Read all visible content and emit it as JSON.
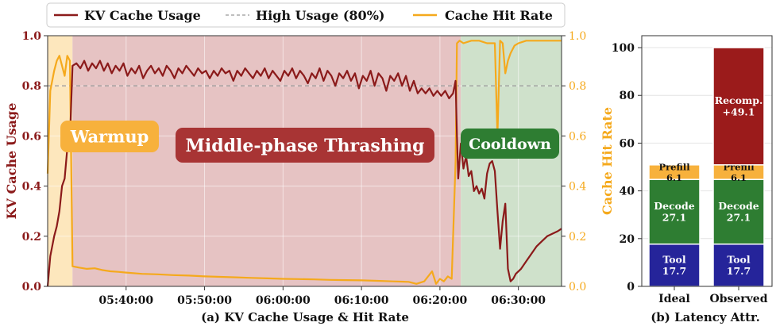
{
  "legend": {
    "items": [
      {
        "label": "KV Cache Usage",
        "color": "#8b1a1a",
        "style": "solid"
      },
      {
        "label": "High Usage (80%)",
        "color": "#aaaaaa",
        "style": "dashed"
      },
      {
        "label": "Cache Hit Rate",
        "color": "#f5a91c",
        "style": "solid"
      }
    ]
  },
  "chart_data": [
    {
      "type": "line",
      "caption": "(a) KV Cache Usage & Hit Rate",
      "ylabel": "KV Cache Usage",
      "ylabel_right": "Cache Hit Rate",
      "xlim": [
        "05:30:00",
        "06:35:30"
      ],
      "ylim": [
        0,
        1
      ],
      "ylim_right": [
        0,
        1
      ],
      "x_ticks": [
        "05:40:00",
        "05:50:00",
        "06:00:00",
        "06:10:00",
        "06:20:00",
        "06:30:00"
      ],
      "y_ticks": [
        "0.0",
        "0.2",
        "0.4",
        "0.6",
        "0.8",
        "1.0"
      ],
      "y_ticks_right": [
        "0.0",
        "0.2",
        "0.4",
        "0.6",
        "0.8",
        "1.0"
      ],
      "threshold": {
        "name": "High Usage (80%)",
        "value": 0.8
      },
      "phases": [
        {
          "label": "Warmup",
          "start": "05:30:00",
          "end": "05:33:10",
          "bg": "#fde7bd",
          "tag": "#f7b13c"
        },
        {
          "label": "Middle-phase Thrashing",
          "start": "05:33:10",
          "end": "06:22:40",
          "bg": "#e6c3c3",
          "tag": "#a83434"
        },
        {
          "label": "Cooldown",
          "start": "06:22:40",
          "end": "06:35:30",
          "bg": "#cfe1cb",
          "tag": "#2e7d32"
        }
      ],
      "grid": true,
      "series": [
        {
          "name": "KV Cache Usage",
          "color": "#8b1a1a",
          "axis": "left",
          "points": [
            [
              "05:30:00",
              0.0
            ],
            [
              "05:30:20",
              0.12
            ],
            [
              "05:30:50",
              0.2
            ],
            [
              "05:31:10",
              0.24
            ],
            [
              "05:31:30",
              0.3
            ],
            [
              "05:31:50",
              0.4
            ],
            [
              "05:32:10",
              0.43
            ],
            [
              "05:32:30",
              0.55
            ],
            [
              "05:32:50",
              0.58
            ],
            [
              "05:33:10",
              0.88
            ],
            [
              "05:33:40",
              0.89
            ],
            [
              "05:34:10",
              0.87
            ],
            [
              "05:34:40",
              0.9
            ],
            [
              "05:35:10",
              0.86
            ],
            [
              "05:35:40",
              0.89
            ],
            [
              "05:36:10",
              0.87
            ],
            [
              "05:36:40",
              0.9
            ],
            [
              "05:37:10",
              0.86
            ],
            [
              "05:37:40",
              0.89
            ],
            [
              "05:38:10",
              0.85
            ],
            [
              "05:38:40",
              0.88
            ],
            [
              "05:39:10",
              0.86
            ],
            [
              "05:39:40",
              0.89
            ],
            [
              "05:40:10",
              0.84
            ],
            [
              "05:40:40",
              0.87
            ],
            [
              "05:41:10",
              0.85
            ],
            [
              "05:41:40",
              0.88
            ],
            [
              "05:42:10",
              0.83
            ],
            [
              "05:42:40",
              0.86
            ],
            [
              "05:43:10",
              0.88
            ],
            [
              "05:43:40",
              0.85
            ],
            [
              "05:44:10",
              0.87
            ],
            [
              "05:44:40",
              0.84
            ],
            [
              "05:45:10",
              0.88
            ],
            [
              "05:45:40",
              0.86
            ],
            [
              "05:46:10",
              0.83
            ],
            [
              "05:46:40",
              0.87
            ],
            [
              "05:47:10",
              0.85
            ],
            [
              "05:47:40",
              0.88
            ],
            [
              "05:48:10",
              0.86
            ],
            [
              "05:48:40",
              0.84
            ],
            [
              "05:49:10",
              0.87
            ],
            [
              "05:49:40",
              0.85
            ],
            [
              "05:50:10",
              0.86
            ],
            [
              "05:50:40",
              0.83
            ],
            [
              "05:51:10",
              0.86
            ],
            [
              "05:51:40",
              0.84
            ],
            [
              "05:52:10",
              0.87
            ],
            [
              "05:52:40",
              0.85
            ],
            [
              "05:53:10",
              0.86
            ],
            [
              "05:53:40",
              0.82
            ],
            [
              "05:54:10",
              0.86
            ],
            [
              "05:54:40",
              0.84
            ],
            [
              "05:55:10",
              0.87
            ],
            [
              "05:55:40",
              0.85
            ],
            [
              "05:56:10",
              0.83
            ],
            [
              "05:56:40",
              0.86
            ],
            [
              "05:57:10",
              0.84
            ],
            [
              "05:57:40",
              0.87
            ],
            [
              "05:58:10",
              0.83
            ],
            [
              "05:58:40",
              0.86
            ],
            [
              "05:59:10",
              0.84
            ],
            [
              "05:59:40",
              0.82
            ],
            [
              "06:00:10",
              0.86
            ],
            [
              "06:00:40",
              0.84
            ],
            [
              "06:01:10",
              0.87
            ],
            [
              "06:01:40",
              0.83
            ],
            [
              "06:02:10",
              0.86
            ],
            [
              "06:02:40",
              0.84
            ],
            [
              "06:03:10",
              0.81
            ],
            [
              "06:03:40",
              0.85
            ],
            [
              "06:04:10",
              0.83
            ],
            [
              "06:04:40",
              0.87
            ],
            [
              "06:05:10",
              0.82
            ],
            [
              "06:05:40",
              0.86
            ],
            [
              "06:06:10",
              0.84
            ],
            [
              "06:06:40",
              0.8
            ],
            [
              "06:07:10",
              0.85
            ],
            [
              "06:07:40",
              0.83
            ],
            [
              "06:08:10",
              0.86
            ],
            [
              "06:08:40",
              0.82
            ],
            [
              "06:09:10",
              0.85
            ],
            [
              "06:09:40",
              0.79
            ],
            [
              "06:10:10",
              0.84
            ],
            [
              "06:10:40",
              0.82
            ],
            [
              "06:11:10",
              0.86
            ],
            [
              "06:11:40",
              0.8
            ],
            [
              "06:12:10",
              0.85
            ],
            [
              "06:12:40",
              0.83
            ],
            [
              "06:13:10",
              0.78
            ],
            [
              "06:13:40",
              0.84
            ],
            [
              "06:14:10",
              0.82
            ],
            [
              "06:14:40",
              0.85
            ],
            [
              "06:15:10",
              0.8
            ],
            [
              "06:15:40",
              0.84
            ],
            [
              "06:16:10",
              0.78
            ],
            [
              "06:16:40",
              0.82
            ],
            [
              "06:17:10",
              0.77
            ],
            [
              "06:17:40",
              0.79
            ],
            [
              "06:18:10",
              0.77
            ],
            [
              "06:18:40",
              0.79
            ],
            [
              "06:19:10",
              0.76
            ],
            [
              "06:19:40",
              0.78
            ],
            [
              "06:20:10",
              0.76
            ],
            [
              "06:20:40",
              0.78
            ],
            [
              "06:21:10",
              0.75
            ],
            [
              "06:21:40",
              0.77
            ],
            [
              "06:22:00",
              0.82
            ],
            [
              "06:22:10",
              0.6
            ],
            [
              "06:22:20",
              0.43
            ],
            [
              "06:22:40",
              0.57
            ],
            [
              "06:23:00",
              0.47
            ],
            [
              "06:23:20",
              0.52
            ],
            [
              "06:23:40",
              0.44
            ],
            [
              "06:24:00",
              0.46
            ],
            [
              "06:24:20",
              0.38
            ],
            [
              "06:24:40",
              0.4
            ],
            [
              "06:25:00",
              0.37
            ],
            [
              "06:25:20",
              0.39
            ],
            [
              "06:25:40",
              0.35
            ],
            [
              "06:26:00",
              0.45
            ],
            [
              "06:26:20",
              0.49
            ],
            [
              "06:26:40",
              0.5
            ],
            [
              "06:27:00",
              0.46
            ],
            [
              "06:27:20",
              0.3
            ],
            [
              "06:27:40",
              0.15
            ],
            [
              "06:28:00",
              0.26
            ],
            [
              "06:28:20",
              0.33
            ],
            [
              "06:28:40",
              0.07
            ],
            [
              "06:29:00",
              0.02
            ],
            [
              "06:29:20",
              0.03
            ],
            [
              "06:29:40",
              0.05
            ],
            [
              "06:30:20",
              0.07
            ],
            [
              "06:31:00",
              0.1
            ],
            [
              "06:31:40",
              0.13
            ],
            [
              "06:32:20",
              0.16
            ],
            [
              "06:33:00",
              0.18
            ],
            [
              "06:33:40",
              0.2
            ],
            [
              "06:34:20",
              0.21
            ],
            [
              "06:35:00",
              0.22
            ],
            [
              "06:35:30",
              0.23
            ]
          ]
        },
        {
          "name": "Cache Hit Rate",
          "color": "#f5a91c",
          "axis": "right",
          "points": [
            [
              "05:30:00",
              0.45
            ],
            [
              "05:30:20",
              0.78
            ],
            [
              "05:30:50",
              0.86
            ],
            [
              "05:31:10",
              0.9
            ],
            [
              "05:31:30",
              0.92
            ],
            [
              "05:31:50",
              0.88
            ],
            [
              "05:32:10",
              0.84
            ],
            [
              "05:32:30",
              0.92
            ],
            [
              "05:32:50",
              0.9
            ],
            [
              "05:33:10",
              0.08
            ],
            [
              "05:34:00",
              0.075
            ],
            [
              "05:35:00",
              0.07
            ],
            [
              "05:36:00",
              0.072
            ],
            [
              "05:37:00",
              0.065
            ],
            [
              "05:38:00",
              0.06
            ],
            [
              "05:39:00",
              0.058
            ],
            [
              "05:40:00",
              0.055
            ],
            [
              "05:42:00",
              0.05
            ],
            [
              "05:44:00",
              0.048
            ],
            [
              "05:46:00",
              0.045
            ],
            [
              "05:48:00",
              0.043
            ],
            [
              "05:50:00",
              0.04
            ],
            [
              "05:52:00",
              0.038
            ],
            [
              "05:54:00",
              0.036
            ],
            [
              "05:56:00",
              0.034
            ],
            [
              "05:58:00",
              0.032
            ],
            [
              "06:00:00",
              0.03
            ],
            [
              "06:02:00",
              0.029
            ],
            [
              "06:04:00",
              0.028
            ],
            [
              "06:06:00",
              0.026
            ],
            [
              "06:08:00",
              0.025
            ],
            [
              "06:10:00",
              0.024
            ],
            [
              "06:12:00",
              0.022
            ],
            [
              "06:14:00",
              0.02
            ],
            [
              "06:16:00",
              0.018
            ],
            [
              "06:17:00",
              0.01
            ],
            [
              "06:18:00",
              0.02
            ],
            [
              "06:19:00",
              0.06
            ],
            [
              "06:19:30",
              0.01
            ],
            [
              "06:20:00",
              0.03
            ],
            [
              "06:20:30",
              0.02
            ],
            [
              "06:21:00",
              0.04
            ],
            [
              "06:21:30",
              0.03
            ],
            [
              "06:22:00",
              0.5
            ],
            [
              "06:22:10",
              0.97
            ],
            [
              "06:22:30",
              0.98
            ],
            [
              "06:23:00",
              0.97
            ],
            [
              "06:24:00",
              0.98
            ],
            [
              "06:25:00",
              0.98
            ],
            [
              "06:26:00",
              0.97
            ],
            [
              "06:27:00",
              0.97
            ],
            [
              "06:27:20",
              0.6
            ],
            [
              "06:27:40",
              0.98
            ],
            [
              "06:28:00",
              0.97
            ],
            [
              "06:28:20",
              0.85
            ],
            [
              "06:28:40",
              0.9
            ],
            [
              "06:29:00",
              0.93
            ],
            [
              "06:29:30",
              0.96
            ],
            [
              "06:30:00",
              0.97
            ],
            [
              "06:31:00",
              0.98
            ],
            [
              "06:32:00",
              0.98
            ],
            [
              "06:33:00",
              0.98
            ],
            [
              "06:34:00",
              0.98
            ],
            [
              "06:35:00",
              0.98
            ],
            [
              "06:35:30",
              0.98
            ]
          ]
        }
      ]
    },
    {
      "type": "bar",
      "stacked": true,
      "caption": "(b) Latency Attr.",
      "categories": [
        "Ideal",
        "Observed"
      ],
      "ylim": [
        0,
        105
      ],
      "y_ticks": [
        "0",
        "20",
        "40",
        "60",
        "80",
        "100"
      ],
      "series": [
        {
          "name": "Tool",
          "color": "#25249a",
          "values": [
            17.7,
            17.7
          ],
          "labels": [
            "Tool\n17.7",
            "Tool\n17.7"
          ]
        },
        {
          "name": "Decode",
          "color": "#2e7d32",
          "values": [
            27.1,
            27.1
          ],
          "labels": [
            "Decode\n27.1",
            "Decode\n27.1"
          ]
        },
        {
          "name": "Prefill",
          "color": "#f7b13c",
          "values": [
            6.1,
            6.1
          ],
          "labels": [
            "Prefill\n6.1",
            "Prefill\n6.1"
          ]
        },
        {
          "name": "Recomp.",
          "color": "#9b1b1b",
          "values": [
            0,
            49.1
          ],
          "labels": [
            "",
            "Recomp.\n+49.1"
          ]
        }
      ]
    }
  ]
}
